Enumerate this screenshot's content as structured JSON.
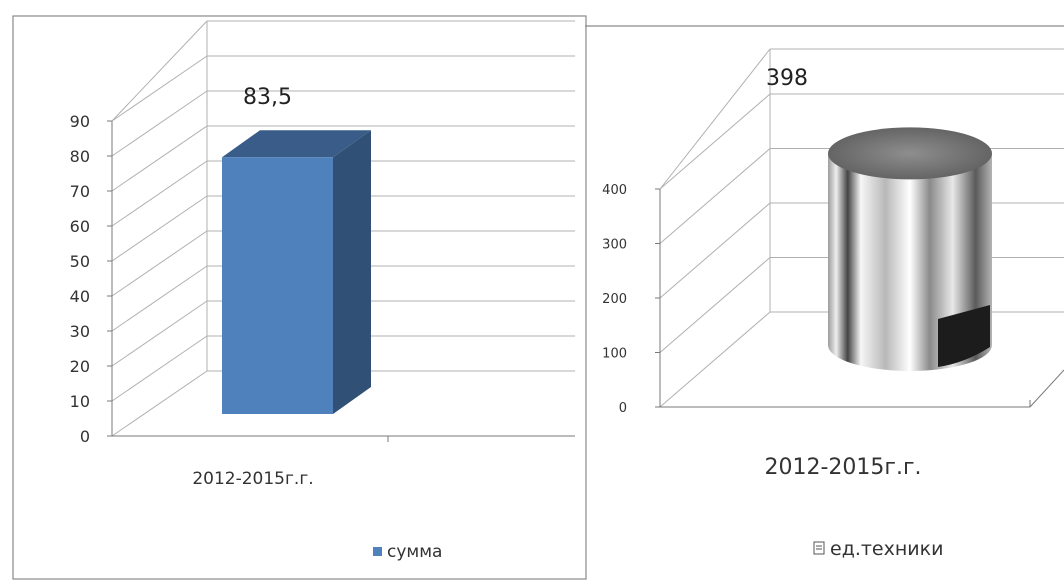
{
  "chart_data": [
    {
      "type": "bar",
      "categories": [
        "2012-2015г.г."
      ],
      "series": [
        {
          "name": "сумма",
          "values": [
            83.5
          ]
        }
      ],
      "data_labels": [
        "83,5"
      ],
      "ylim": [
        0,
        90
      ],
      "yticks": [
        0,
        10,
        20,
        30,
        40,
        50,
        60,
        70,
        80,
        90
      ],
      "grid": true,
      "legend": "bottom",
      "color": "#4f81bd"
    },
    {
      "type": "bar",
      "categories": [
        "2012-2015г.г."
      ],
      "series": [
        {
          "name": "ед.техники",
          "values": [
            398
          ]
        }
      ],
      "data_labels": [
        "398"
      ],
      "ylim": [
        0,
        400
      ],
      "yticks": [
        0,
        100,
        200,
        300,
        400
      ],
      "grid": true,
      "legend": "bottom",
      "color": "#9a9a9a"
    }
  ]
}
